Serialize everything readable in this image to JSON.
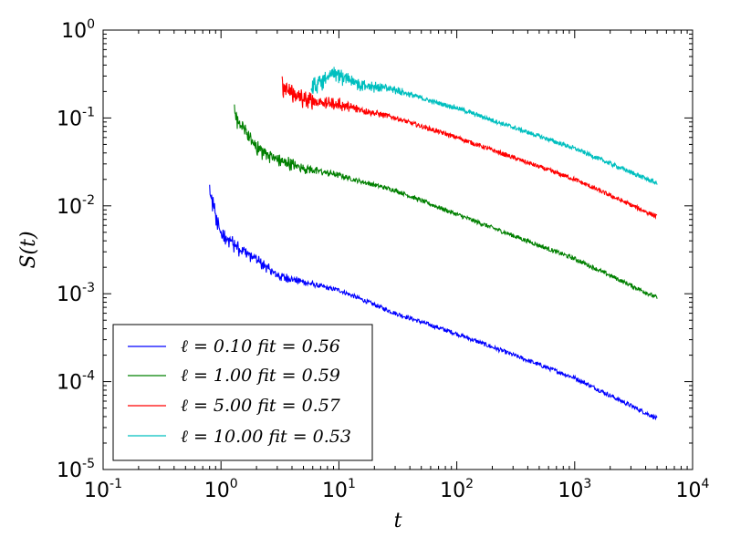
{
  "chart_data": {
    "type": "line",
    "xscale": "log",
    "yscale": "log",
    "xlim": [
      0.1,
      10000
    ],
    "ylim": [
      1e-05,
      1
    ],
    "xlabel": "t",
    "ylabel": "S(t)",
    "x_ticks": [
      {
        "base": "10",
        "exp": "-1",
        "value": 0.1
      },
      {
        "base": "10",
        "exp": "0",
        "value": 1
      },
      {
        "base": "10",
        "exp": "1",
        "value": 10
      },
      {
        "base": "10",
        "exp": "2",
        "value": 100
      },
      {
        "base": "10",
        "exp": "3",
        "value": 1000
      },
      {
        "base": "10",
        "exp": "4",
        "value": 10000
      }
    ],
    "y_ticks": [
      {
        "base": "10",
        "exp": "-5",
        "value": 1e-05
      },
      {
        "base": "10",
        "exp": "-4",
        "value": 0.0001
      },
      {
        "base": "10",
        "exp": "-3",
        "value": 0.001
      },
      {
        "base": "10",
        "exp": "-2",
        "value": 0.01
      },
      {
        "base": "10",
        "exp": "-1",
        "value": 0.1
      },
      {
        "base": "10",
        "exp": "0",
        "value": 1
      }
    ],
    "legend_position": "lower-left",
    "series": [
      {
        "name": "ℓ = 0.10    fit = 0.56",
        "color": "#0000ff",
        "t_start": 0.8,
        "t_end": 5000,
        "points": [
          [
            0.8,
            0.012
          ],
          [
            1.0,
            0.004
          ],
          [
            2.0,
            0.0022
          ],
          [
            3.0,
            0.0015
          ],
          [
            10,
            0.0011
          ],
          [
            30,
            0.0006
          ],
          [
            100,
            0.00035
          ],
          [
            1000,
            0.00011
          ],
          [
            5000,
            3.8e-05
          ]
        ],
        "fit_slope": 0.56
      },
      {
        "name": "ℓ = 1.00    fit = 0.59",
        "color": "#008000",
        "t_start": 1.3,
        "t_end": 5000,
        "points": [
          [
            1.3,
            0.09
          ],
          [
            2.0,
            0.04
          ],
          [
            3.0,
            0.03
          ],
          [
            5.0,
            0.025
          ],
          [
            10,
            0.022
          ],
          [
            30,
            0.015
          ],
          [
            100,
            0.008
          ],
          [
            1000,
            0.0025
          ],
          [
            5000,
            0.0009
          ]
        ],
        "fit_slope": 0.59
      },
      {
        "name": "ℓ = 5.00    fit = 0.57",
        "color": "#ff0000",
        "t_start": 3.3,
        "t_end": 5000,
        "points": [
          [
            3.3,
            0.19
          ],
          [
            5.0,
            0.14
          ],
          [
            10,
            0.13
          ],
          [
            30,
            0.1
          ],
          [
            100,
            0.06
          ],
          [
            1000,
            0.02
          ],
          [
            5000,
            0.0075
          ]
        ],
        "fit_slope": 0.57
      },
      {
        "name": "ℓ = 10.00    fit = 0.53",
        "color": "#00bfbf",
        "t_start": 5.8,
        "t_end": 5000,
        "points": [
          [
            5.8,
            0.18
          ],
          [
            9.0,
            0.28
          ],
          [
            15,
            0.22
          ],
          [
            30,
            0.2
          ],
          [
            100,
            0.13
          ],
          [
            1000,
            0.045
          ],
          [
            5000,
            0.018
          ]
        ],
        "fit_slope": 0.53
      }
    ]
  }
}
